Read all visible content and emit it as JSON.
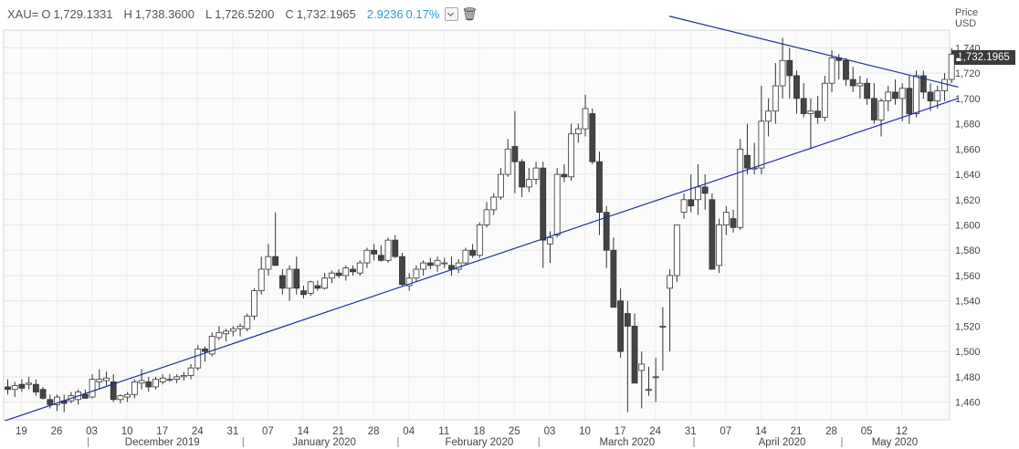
{
  "header": {
    "symbol": "XAU=",
    "open_label": "O",
    "open": "1,729.1331",
    "high_label": "H",
    "high": "1,738.3600",
    "low_label": "L",
    "low": "1,726.5200",
    "close_label": "C",
    "close": "1,732.1965",
    "change": "2.9236",
    "change_pct": "0.17%"
  },
  "price_axis": {
    "title_line1": "Price",
    "title_line2": "USD",
    "last_price": "1,732.1965"
  },
  "colors": {
    "up_fill": "#ffffff",
    "down_fill": "#444444",
    "wick": "#333333",
    "trendline": "#1f2fa0",
    "grid": "#e6e6e6",
    "change": "#2a9fd6"
  },
  "icons": [
    "chevron-down-icon",
    "trash-icon"
  ],
  "chart_data": {
    "type": "candlestick",
    "ylim": [
      1446,
      1754
    ],
    "y_ticks": [
      1460,
      1480,
      1500,
      1520,
      1540,
      1560,
      1580,
      1600,
      1620,
      1640,
      1660,
      1680,
      1700,
      1720,
      1740
    ],
    "x_ticks": [
      {
        "label": "19",
        "i": 2
      },
      {
        "label": "26",
        "i": 7
      },
      {
        "label": "03",
        "i": 12
      },
      {
        "label": "10",
        "i": 17
      },
      {
        "label": "17",
        "i": 22
      },
      {
        "label": "24",
        "i": 27
      },
      {
        "label": "31",
        "i": 32
      },
      {
        "label": "07",
        "i": 37
      },
      {
        "label": "14",
        "i": 42
      },
      {
        "label": "21",
        "i": 47
      },
      {
        "label": "28",
        "i": 52
      },
      {
        "label": "04",
        "i": 57
      },
      {
        "label": "11",
        "i": 62
      },
      {
        "label": "18",
        "i": 67
      },
      {
        "label": "25",
        "i": 72
      },
      {
        "label": "03",
        "i": 77
      },
      {
        "label": "10",
        "i": 82
      },
      {
        "label": "17",
        "i": 87
      },
      {
        "label": "24",
        "i": 92
      },
      {
        "label": "31",
        "i": 97
      },
      {
        "label": "07",
        "i": 102
      },
      {
        "label": "14",
        "i": 107
      },
      {
        "label": "21",
        "i": 112
      },
      {
        "label": "28",
        "i": 117
      },
      {
        "label": "05",
        "i": 122
      },
      {
        "label": "12",
        "i": 127
      }
    ],
    "month_labels": [
      {
        "label": "December 2019",
        "i": 22
      },
      {
        "label": "January 2020",
        "i": 45
      },
      {
        "label": "February 2020",
        "i": 67
      },
      {
        "label": "March 2020",
        "i": 88
      },
      {
        "label": "April 2020",
        "i": 110
      },
      {
        "label": "May 2020",
        "i": 126
      }
    ],
    "month_separators": [
      12,
      34,
      56,
      76,
      98,
      119
    ],
    "candles": [
      [
        1472,
        1478,
        1466,
        1470
      ],
      [
        1470,
        1476,
        1464,
        1473
      ],
      [
        1474,
        1478,
        1468,
        1471
      ],
      [
        1474,
        1480,
        1470,
        1475
      ],
      [
        1474,
        1478,
        1465,
        1468
      ],
      [
        1470,
        1472,
        1462,
        1463
      ],
      [
        1462,
        1466,
        1455,
        1458
      ],
      [
        1458,
        1466,
        1453,
        1464
      ],
      [
        1461,
        1466,
        1452,
        1459
      ],
      [
        1461,
        1468,
        1459,
        1465
      ],
      [
        1462,
        1470,
        1458,
        1468
      ],
      [
        1466,
        1470,
        1463,
        1463
      ],
      [
        1464,
        1482,
        1463,
        1478
      ],
      [
        1476,
        1486,
        1470,
        1478
      ],
      [
        1477,
        1484,
        1473,
        1479
      ],
      [
        1476,
        1482,
        1460,
        1462
      ],
      [
        1462,
        1466,
        1459,
        1465
      ],
      [
        1464,
        1468,
        1460,
        1466
      ],
      [
        1466,
        1478,
        1463,
        1476
      ],
      [
        1475,
        1486,
        1470,
        1477
      ],
      [
        1476,
        1480,
        1468,
        1472
      ],
      [
        1472,
        1480,
        1470,
        1478
      ],
      [
        1476,
        1482,
        1474,
        1479
      ],
      [
        1478,
        1482,
        1476,
        1478
      ],
      [
        1478,
        1482,
        1475,
        1480
      ],
      [
        1480,
        1484,
        1477,
        1481
      ],
      [
        1481,
        1490,
        1478,
        1487
      ],
      [
        1487,
        1505,
        1485,
        1502
      ],
      [
        1502,
        1504,
        1492,
        1500
      ],
      [
        1498,
        1515,
        1496,
        1512
      ],
      [
        1511,
        1520,
        1509,
        1515
      ],
      [
        1514,
        1518,
        1508,
        1516
      ],
      [
        1516,
        1520,
        1512,
        1518
      ],
      [
        1518,
        1522,
        1512,
        1520
      ],
      [
        1518,
        1530,
        1516,
        1528
      ],
      [
        1528,
        1550,
        1525,
        1548
      ],
      [
        1548,
        1575,
        1545,
        1565
      ],
      [
        1565,
        1585,
        1560,
        1575
      ],
      [
        1575,
        1610,
        1568,
        1568
      ],
      [
        1560,
        1565,
        1545,
        1550
      ],
      [
        1550,
        1568,
        1540,
        1565
      ],
      [
        1565,
        1575,
        1545,
        1550
      ],
      [
        1548,
        1552,
        1542,
        1545
      ],
      [
        1546,
        1556,
        1544,
        1555
      ],
      [
        1552,
        1556,
        1548,
        1550
      ],
      [
        1550,
        1562,
        1549,
        1558
      ],
      [
        1558,
        1564,
        1554,
        1562
      ],
      [
        1562,
        1565,
        1558,
        1560
      ],
      [
        1560,
        1568,
        1556,
        1566
      ],
      [
        1565,
        1568,
        1560,
        1563
      ],
      [
        1562,
        1572,
        1560,
        1570
      ],
      [
        1570,
        1582,
        1566,
        1580
      ],
      [
        1580,
        1585,
        1572,
        1577
      ],
      [
        1576,
        1584,
        1571,
        1572
      ],
      [
        1572,
        1590,
        1570,
        1588
      ],
      [
        1588,
        1592,
        1574,
        1575
      ],
      [
        1575,
        1578,
        1552,
        1553
      ],
      [
        1552,
        1562,
        1548,
        1558
      ],
      [
        1558,
        1568,
        1555,
        1565
      ],
      [
        1565,
        1572,
        1560,
        1570
      ],
      [
        1570,
        1574,
        1565,
        1568
      ],
      [
        1568,
        1575,
        1563,
        1572
      ],
      [
        1570,
        1574,
        1566,
        1570
      ],
      [
        1568,
        1575,
        1560,
        1565
      ],
      [
        1565,
        1573,
        1562,
        1570
      ],
      [
        1570,
        1582,
        1568,
        1580
      ],
      [
        1580,
        1585,
        1574,
        1576
      ],
      [
        1576,
        1602,
        1574,
        1600
      ],
      [
        1600,
        1618,
        1598,
        1612
      ],
      [
        1612,
        1625,
        1608,
        1622
      ],
      [
        1622,
        1645,
        1620,
        1640
      ],
      [
        1640,
        1668,
        1638,
        1660
      ],
      [
        1662,
        1690,
        1625,
        1650
      ],
      [
        1650,
        1652,
        1622,
        1630
      ],
      [
        1630,
        1645,
        1626,
        1636
      ],
      [
        1636,
        1650,
        1632,
        1645
      ],
      [
        1645,
        1650,
        1566,
        1588
      ],
      [
        1585,
        1595,
        1570,
        1590
      ],
      [
        1592,
        1645,
        1590,
        1640
      ],
      [
        1640,
        1648,
        1634,
        1638
      ],
      [
        1638,
        1680,
        1635,
        1672
      ],
      [
        1672,
        1680,
        1665,
        1676
      ],
      [
        1676,
        1703,
        1670,
        1692
      ],
      [
        1688,
        1692,
        1648,
        1650
      ],
      [
        1650,
        1658,
        1592,
        1610
      ],
      [
        1610,
        1615,
        1566,
        1580
      ],
      [
        1580,
        1590,
        1535,
        1535
      ],
      [
        1540,
        1550,
        1495,
        1500
      ],
      [
        1530,
        1540,
        1452,
        1520
      ],
      [
        1520,
        1530,
        1475,
        1475
      ],
      [
        1485,
        1500,
        1455,
        1490
      ],
      [
        1470,
        1488,
        1465,
        1470
      ],
      [
        1480,
        1495,
        1460,
        1480
      ],
      [
        1520,
        1535,
        1485,
        1520
      ],
      [
        1550,
        1565,
        1500,
        1560
      ],
      [
        1560,
        1600,
        1555,
        1600
      ],
      [
        1610,
        1625,
        1605,
        1620
      ],
      [
        1620,
        1640,
        1610,
        1615
      ],
      [
        1620,
        1648,
        1608,
        1630
      ],
      [
        1630,
        1640,
        1612,
        1625
      ],
      [
        1620,
        1625,
        1565,
        1565
      ],
      [
        1568,
        1605,
        1562,
        1600
      ],
      [
        1600,
        1615,
        1592,
        1610
      ],
      [
        1605,
        1612,
        1594,
        1598
      ],
      [
        1598,
        1668,
        1596,
        1660
      ],
      [
        1655,
        1680,
        1640,
        1645
      ],
      [
        1645,
        1665,
        1640,
        1645
      ],
      [
        1645,
        1710,
        1640,
        1682
      ],
      [
        1682,
        1700,
        1670,
        1690
      ],
      [
        1690,
        1728,
        1680,
        1710
      ],
      [
        1710,
        1748,
        1700,
        1730
      ],
      [
        1730,
        1740,
        1700,
        1718
      ],
      [
        1718,
        1722,
        1688,
        1700
      ],
      [
        1700,
        1712,
        1685,
        1688
      ],
      [
        1688,
        1700,
        1660,
        1690
      ],
      [
        1690,
        1702,
        1680,
        1685
      ],
      [
        1685,
        1718,
        1682,
        1712
      ],
      [
        1712,
        1738,
        1705,
        1732
      ],
      [
        1732,
        1735,
        1715,
        1730
      ],
      [
        1730,
        1732,
        1710,
        1715
      ],
      [
        1715,
        1725,
        1705,
        1710
      ],
      [
        1710,
        1718,
        1700,
        1712
      ],
      [
        1712,
        1716,
        1695,
        1700
      ],
      [
        1700,
        1712,
        1680,
        1683
      ],
      [
        1683,
        1700,
        1670,
        1698
      ],
      [
        1698,
        1710,
        1690,
        1705
      ],
      [
        1705,
        1715,
        1695,
        1700
      ],
      [
        1700,
        1712,
        1682,
        1708
      ],
      [
        1708,
        1718,
        1680,
        1688
      ],
      [
        1688,
        1722,
        1685,
        1718
      ],
      [
        1718,
        1722,
        1700,
        1705
      ],
      [
        1705,
        1712,
        1690,
        1698
      ],
      [
        1698,
        1710,
        1692,
        1706
      ],
      [
        1706,
        1720,
        1698,
        1715
      ],
      [
        1715,
        1740,
        1712,
        1735
      ],
      [
        1729.1331,
        1738.36,
        1726.52,
        1732.1965
      ]
    ],
    "trendlines": [
      {
        "name": "support",
        "from": [
          -1,
          1444
        ],
        "to": [
          135,
          1700
        ]
      },
      {
        "name": "resistance",
        "from": [
          94,
          1765
        ],
        "to": [
          135,
          1709
        ]
      }
    ]
  }
}
